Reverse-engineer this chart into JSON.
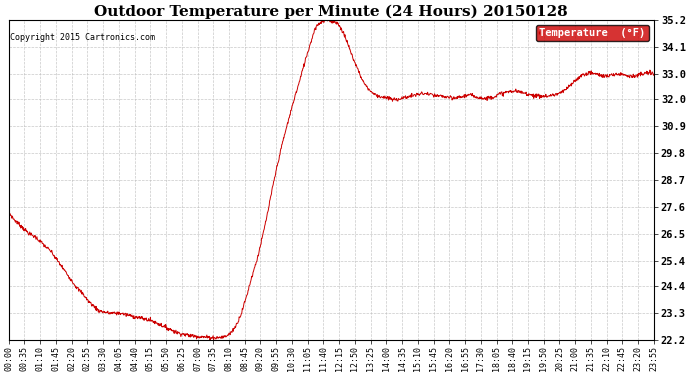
{
  "title": "Outdoor Temperature per Minute (24 Hours) 20150128",
  "copyright_text": "Copyright 2015 Cartronics.com",
  "legend_label": "Temperature  (°F)",
  "line_color": "#cc0000",
  "legend_bg": "#cc0000",
  "legend_text_color": "#ffffff",
  "background_color": "#ffffff",
  "grid_color": "#bbbbbb",
  "ylim": [
    22.2,
    35.2
  ],
  "yticks": [
    22.2,
    23.3,
    24.4,
    25.4,
    26.5,
    27.6,
    28.7,
    29.8,
    30.9,
    32.0,
    33.0,
    34.1,
    35.2
  ],
  "title_fontsize": 11,
  "copyright_fontsize": 6,
  "xlabel_fontsize": 6,
  "ylabel_fontsize": 7.5,
  "xtick_labels": [
    "00:00",
    "00:35",
    "01:10",
    "01:45",
    "02:20",
    "02:55",
    "03:30",
    "04:05",
    "04:40",
    "05:15",
    "05:50",
    "06:25",
    "07:00",
    "07:35",
    "08:10",
    "08:45",
    "09:20",
    "09:55",
    "10:30",
    "11:05",
    "11:40",
    "12:15",
    "12:50",
    "13:25",
    "14:00",
    "14:35",
    "15:10",
    "15:45",
    "16:20",
    "16:55",
    "17:30",
    "18:05",
    "18:40",
    "19:15",
    "19:50",
    "20:25",
    "21:00",
    "21:35",
    "22:10",
    "22:45",
    "23:20",
    "23:55"
  ],
  "temperature_profile": [
    27.4,
    27.1,
    26.9,
    26.7,
    26.5,
    26.4,
    26.2,
    26.0,
    25.8,
    25.5,
    25.2,
    24.9,
    24.6,
    24.3,
    24.1,
    23.8,
    23.6,
    23.4,
    23.35,
    23.3,
    23.3,
    23.3,
    23.25,
    23.2,
    23.15,
    23.1,
    23.05,
    23.0,
    22.9,
    22.8,
    22.7,
    22.6,
    22.5,
    22.45,
    22.4,
    22.38,
    22.35,
    22.33,
    22.32,
    22.3,
    22.32,
    22.35,
    22.5,
    22.8,
    23.3,
    24.0,
    24.8,
    25.5,
    26.4,
    27.4,
    28.5,
    29.5,
    30.4,
    31.2,
    32.0,
    32.7,
    33.5,
    34.2,
    34.9,
    35.1,
    35.2,
    35.15,
    35.1,
    34.8,
    34.3,
    33.7,
    33.2,
    32.7,
    32.4,
    32.2,
    32.1,
    32.05,
    32.0,
    31.95,
    32.0,
    32.05,
    32.1,
    32.15,
    32.2,
    32.2,
    32.15,
    32.1,
    32.1,
    32.05,
    32.0,
    32.05,
    32.1,
    32.15,
    32.1,
    32.05,
    32.0,
    32.05,
    32.1,
    32.2,
    32.25,
    32.3,
    32.3,
    32.25,
    32.2,
    32.15,
    32.1,
    32.1,
    32.1,
    32.15,
    32.2,
    32.3,
    32.5,
    32.7,
    32.9,
    33.0,
    33.05,
    33.0,
    32.95,
    32.9,
    32.95,
    33.0,
    33.0,
    32.95,
    32.9,
    32.95,
    33.0,
    33.05,
    33.0
  ]
}
